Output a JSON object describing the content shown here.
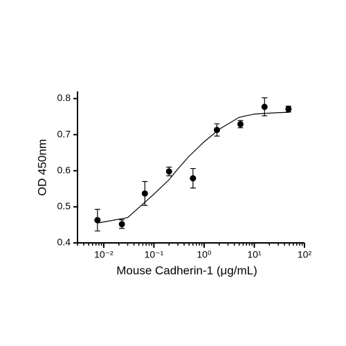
{
  "chart_data": {
    "type": "scatter",
    "x_label": "Mouse Cadherin-1 (μg/mL)",
    "y_label": "OD 450nm",
    "x": [
      0.0075,
      0.023,
      0.066,
      0.2,
      0.6,
      1.8,
      5.3,
      16,
      48
    ],
    "values": [
      0.463,
      0.452,
      0.537,
      0.598,
      0.579,
      0.713,
      0.729,
      0.777,
      0.771
    ],
    "errors": [
      0.03,
      0.012,
      0.033,
      0.012,
      0.027,
      0.017,
      0.01,
      0.025,
      0.008
    ],
    "curve": {
      "x": [
        0.0075,
        0.01,
        0.03,
        0.1,
        0.2,
        0.3,
        0.5,
        1,
        2,
        5,
        10,
        30,
        50
      ],
      "y": [
        0.455,
        0.458,
        0.47,
        0.535,
        0.575,
        0.605,
        0.64,
        0.68,
        0.715,
        0.748,
        0.757,
        0.761,
        0.762
      ]
    },
    "color": "#000000",
    "log_x": true,
    "xlim": [
      0.003,
      100
    ],
    "xticks": [
      {
        "value": 0.01,
        "label": "10⁻²"
      },
      {
        "value": 0.1,
        "label": "10⁻¹"
      },
      {
        "value": 1,
        "label": "10⁰"
      },
      {
        "value": 10,
        "label": "10¹"
      },
      {
        "value": 100,
        "label": "10²"
      }
    ],
    "ylim": [
      0.4,
      0.82
    ],
    "yticks": [
      0.4,
      0.5,
      0.6,
      0.7,
      0.8
    ]
  }
}
